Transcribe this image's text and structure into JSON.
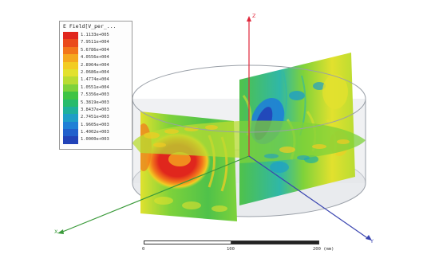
{
  "legend": {
    "title": "E Field[V_per_...",
    "entries": [
      {
        "value": "1.1133e+005",
        "color": "#e0261d"
      },
      {
        "value": "7.9511e+004",
        "color": "#ea4a1c"
      },
      {
        "value": "5.6786e+004",
        "color": "#f2761b"
      },
      {
        "value": "4.0556e+004",
        "color": "#f5a81f"
      },
      {
        "value": "2.8964e+004",
        "color": "#f2cc23"
      },
      {
        "value": "2.0686e+004",
        "color": "#e2e12e"
      },
      {
        "value": "1.4774e+004",
        "color": "#b9dc32"
      },
      {
        "value": "1.0551e+004",
        "color": "#7ed23a"
      },
      {
        "value": "7.5356e+003",
        "color": "#3fc444"
      },
      {
        "value": "5.3819e+003",
        "color": "#27bb6c"
      },
      {
        "value": "3.8437e+003",
        "color": "#1eb09c"
      },
      {
        "value": "2.7451e+003",
        "color": "#1e9ec7"
      },
      {
        "value": "1.9605e+003",
        "color": "#1f7fd6"
      },
      {
        "value": "1.4002e+003",
        "color": "#2160cc"
      },
      {
        "value": "1.0000e+003",
        "color": "#2243b8"
      }
    ]
  },
  "axes": {
    "z": "Z",
    "x": "X",
    "y": "Y"
  },
  "scale": {
    "labels": [
      "0",
      "100",
      "200 (mm)"
    ]
  },
  "colors": {
    "z_axis": "#e0263a",
    "x_axis": "#3a9a3a",
    "y_axis": "#3a45b0"
  }
}
